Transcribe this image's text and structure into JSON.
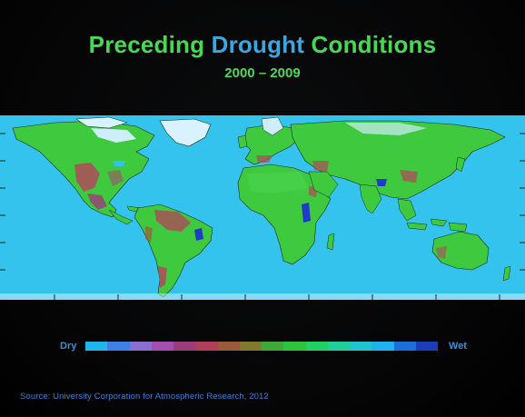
{
  "title": {
    "word1": "Preceding",
    "word2": "Drought",
    "word3": "Conditions"
  },
  "years": "2000 – 2009",
  "legend": {
    "dry_label": "Dry",
    "wet_label": "Wet",
    "colors": [
      "#1fb6ee",
      "#3f7fe6",
      "#8a6fd0",
      "#a34fb0",
      "#9c3c7a",
      "#b03f5a",
      "#9b5a3a",
      "#7f7a2c",
      "#3fa83a",
      "#2cc43e",
      "#20d060",
      "#1ecf9a",
      "#1fc4cc",
      "#1eb3ec",
      "#1a6fd8",
      "#1b3db8"
    ]
  },
  "source": "Source: University Corporation for Atmospheric Research, 2012",
  "colors": {
    "ocean": "#33c3ec",
    "land": "#3ec93e",
    "dry": "#b04a5a",
    "wet": "#1e3cc8",
    "ice": "#d8f2ff"
  }
}
